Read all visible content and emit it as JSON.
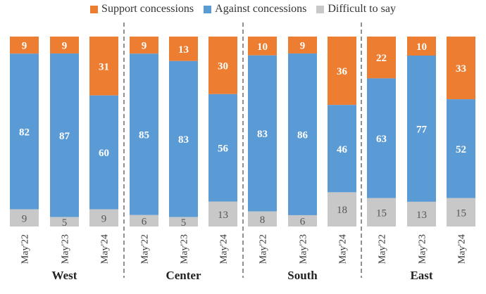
{
  "chart_data": {
    "type": "bar",
    "stacked": true,
    "legend_position": "top",
    "series_names": [
      "Support concessions",
      "Against concessions",
      "Difficult to say"
    ],
    "colors": {
      "Support concessions": "#ED7D31",
      "Against concessions": "#5B9BD5",
      "Difficult to say": "#C8C8C8"
    },
    "groups": [
      {
        "name": "West",
        "categories": [
          "May'22",
          "May'23",
          "May'24"
        ],
        "support": [
          9,
          9,
          31
        ],
        "against": [
          82,
          87,
          60
        ],
        "difficult": [
          9,
          5,
          9
        ]
      },
      {
        "name": "Center",
        "categories": [
          "May'22",
          "May'23",
          "May'24"
        ],
        "support": [
          9,
          13,
          30
        ],
        "against": [
          85,
          83,
          56
        ],
        "difficult": [
          6,
          5,
          13
        ]
      },
      {
        "name": "South",
        "categories": [
          "May'22",
          "May'23",
          "May'24"
        ],
        "support": [
          10,
          9,
          36
        ],
        "against": [
          83,
          86,
          46
        ],
        "difficult": [
          8,
          6,
          18
        ]
      },
      {
        "name": "East",
        "categories": [
          "May'22",
          "May'23",
          "May'24"
        ],
        "support": [
          22,
          10,
          33
        ],
        "against": [
          63,
          77,
          52
        ],
        "difficult": [
          15,
          13,
          15
        ]
      }
    ]
  }
}
